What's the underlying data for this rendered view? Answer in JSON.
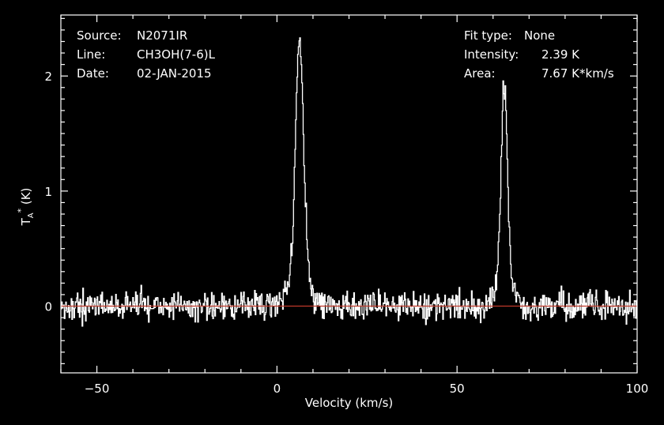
{
  "header": {
    "source_label": "Source:",
    "source_value": "N2071IR",
    "line_label": "Line:",
    "line_value": "CH3OH(7-6)L",
    "date_label": "Date:",
    "date_value": "02-JAN-2015",
    "fit_label": "Fit type:",
    "fit_value": "None",
    "intensity_label": "Intensity:",
    "intensity_value": "2.39 K",
    "area_label": "Area:",
    "area_value": "7.67 K*km/s"
  },
  "colors": {
    "background": "#000000",
    "spectrum": "#ffffff",
    "baseline": "#c0392b"
  },
  "chart_data": {
    "type": "line",
    "xlabel": "Velocity (km/s)",
    "ylabel_main": "T",
    "ylabel_sub": "A",
    "ylabel_sup": "*",
    "ylabel_unit": "(K)",
    "xlim": [
      -60,
      100
    ],
    "ylim": [
      -0.58,
      2.53
    ],
    "xticks": [
      -50,
      0,
      50,
      100
    ],
    "yticks": [
      0,
      1,
      2
    ],
    "baseline": 0,
    "noise_rms": 0.075,
    "channel_width_kms": 0.19,
    "series": [
      {
        "peaks": [
          {
            "center": 6.2,
            "amplitude": 2.3,
            "fwhm": 2.6,
            "wing_amplitude": 0.3,
            "wing_fwhm": 6.5
          },
          {
            "center": 63.0,
            "amplitude": 1.95,
            "fwhm": 2.0,
            "wing_amplitude": 0.25,
            "wing_fwhm": 5.5
          }
        ]
      }
    ]
  }
}
